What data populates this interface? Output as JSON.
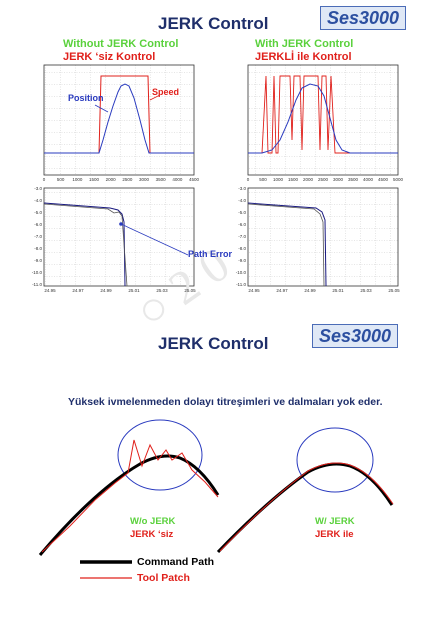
{
  "page1": {
    "title": "JERK Control",
    "logo": "Ses3000",
    "left_heading_en": "Without JERK Control",
    "left_heading_tr": "JERK ‘siz Kontrol",
    "right_heading_en": "With JERK Control",
    "right_heading_tr": "JERKLİ ile Kontrol",
    "annotations": {
      "position": "Position",
      "speed": "Speed",
      "path_error": "Path Error"
    },
    "top_plot_xticks": [
      "0",
      "500",
      "1000",
      "1500",
      "2000",
      "2500",
      "3000",
      "3500",
      "4000",
      "4500"
    ],
    "top_plot_xticks_right": [
      "0",
      "500",
      "1000",
      "1500",
      "2000",
      "2500",
      "3000",
      "3500",
      "4000",
      "4500",
      "5000"
    ],
    "bottom_plot_xticks": [
      "24.95",
      "24.97",
      "24.99",
      "25.01",
      "25.03",
      "25.05"
    ],
    "bottom_plot_xticks_right": [
      "24.95",
      "24.97",
      "24.99",
      "25.01",
      "25.03",
      "25.05"
    ],
    "bottom_plot_yticks": [
      "-3.0",
      "-4.0",
      "-5.0",
      "-6.0",
      "-7.0",
      "-8.0",
      "-9.0",
      "-10.0",
      "-11.0"
    ]
  },
  "page2": {
    "title": "JERK Control",
    "logo": "Ses3000",
    "description": "Yüksek ivmelenmeden dolayı titreşimleri ve dalmaları yok eder.",
    "left_label_en": "W/o JERK",
    "left_label_tr": "JERK ‘siz",
    "right_label_en": "W/ JERK",
    "right_label_tr": "JERK ile",
    "legend": [
      {
        "label": "Command Path",
        "color": "#000000"
      },
      {
        "label": "Tool Patch",
        "color": "#e0201b"
      }
    ]
  },
  "colors": {
    "navy": "#1f2f6b",
    "green": "#5ad13c",
    "red": "#e0201b",
    "blue": "#2a3bbf"
  }
}
